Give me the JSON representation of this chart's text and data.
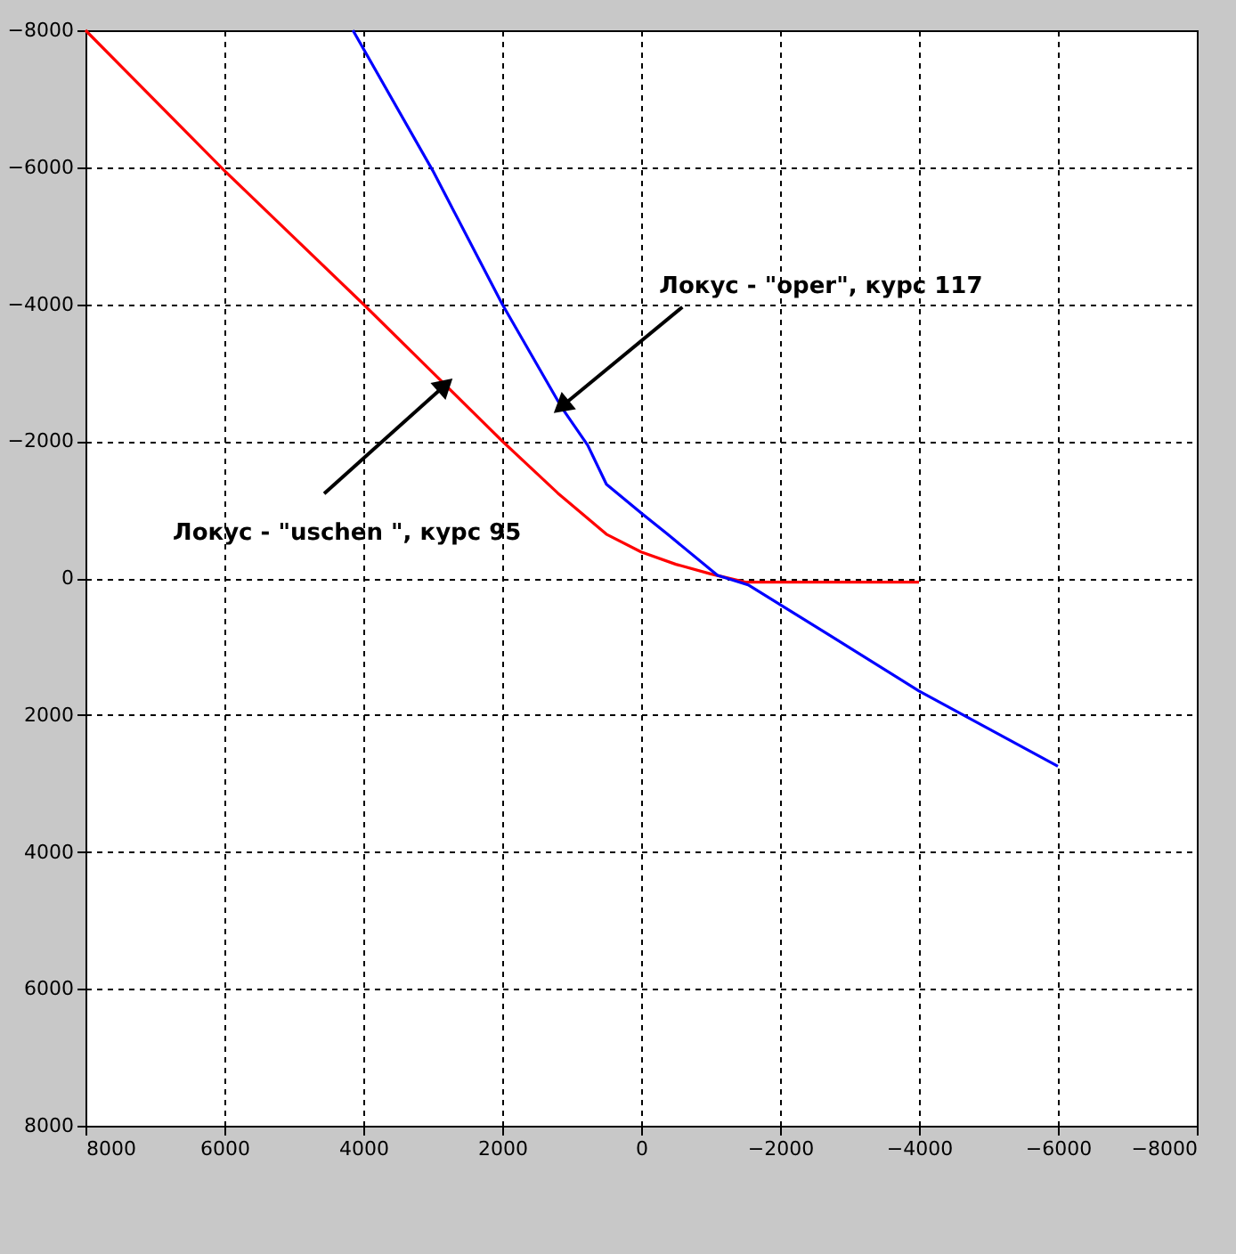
{
  "chart_data": {
    "type": "line",
    "xlim": [
      8000,
      -8000
    ],
    "ylim": [
      8000,
      -8000
    ],
    "xticks": [
      8000,
      6000,
      4000,
      2000,
      0,
      -2000,
      -4000,
      -6000,
      -8000
    ],
    "yticks": [
      8000,
      6000,
      4000,
      2000,
      0,
      -2000,
      -4000,
      -6000,
      -8000
    ],
    "grid": true,
    "line_style": "solid",
    "marker": "none",
    "series": [
      {
        "color": "#ff0000",
        "x": [
          8000,
          6000,
          4000,
          2000,
          1200,
          500,
          0,
          -500,
          -1000,
          -1500,
          -2500,
          -4000
        ],
        "values": [
          -8000,
          -5950,
          -4000,
          -2000,
          -1240,
          -640,
          -380,
          -200,
          -60,
          60,
          60,
          60
        ]
      },
      {
        "color": "#0000ff",
        "x": [
          4150,
          3000,
          2000,
          1150,
          770,
          500,
          0,
          -380,
          -1100,
          -1540,
          -2690,
          -4000,
          -6000
        ],
        "values": [
          -8000,
          -5950,
          -4000,
          -2500,
          -1940,
          -1370,
          -950,
          -640,
          -40,
          100,
          820,
          1650,
          2750
        ]
      }
    ],
    "annotations": [
      {
        "text": "Локус - \"oper\", курс 117",
        "x": 1150,
        "y": -2500
      },
      {
        "text": "Локус - \"uschen \", курс 95",
        "x": 2820,
        "y": -2820
      }
    ]
  }
}
